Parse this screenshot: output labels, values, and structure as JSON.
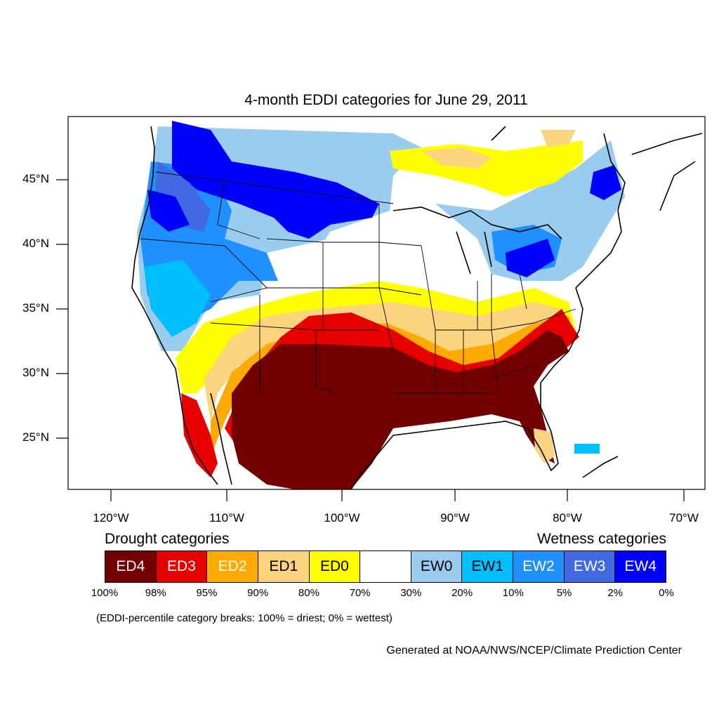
{
  "title": "4-month EDDI categories for June 29, 2011",
  "lat_labels": [
    "45°N",
    "40°N",
    "35°N",
    "30°N",
    "25°N"
  ],
  "lon_labels": [
    "120°W",
    "110°W",
    "100°W",
    "90°W",
    "80°W",
    "70°W"
  ],
  "legend": {
    "drought_heading": "Drought categories",
    "wetness_heading": "Wetness categories",
    "categories": [
      {
        "label": "ED4",
        "color": "#730000",
        "text_color": "#ffffff"
      },
      {
        "label": "ED3",
        "color": "#e60000",
        "text_color": "#ffffff"
      },
      {
        "label": "ED2",
        "color": "#ffaa00",
        "text_color": "#ffffff"
      },
      {
        "label": "ED1",
        "color": "#fcd37f",
        "text_color": "#000000"
      },
      {
        "label": "ED0",
        "color": "#ffff00",
        "text_color": "#000000"
      },
      {
        "label": "",
        "color": "#ffffff",
        "text_color": "#000000"
      },
      {
        "label": "EW0",
        "color": "#99ccee",
        "text_color": "#000000"
      },
      {
        "label": "EW1",
        "color": "#00bfff",
        "text_color": "#000000"
      },
      {
        "label": "EW2",
        "color": "#1e90ff",
        "text_color": "#ffffff"
      },
      {
        "label": "EW3",
        "color": "#4169e1",
        "text_color": "#ffffff"
      },
      {
        "label": "EW4",
        "color": "#0000ff",
        "text_color": "#ffffff"
      }
    ],
    "percentiles": [
      "100%",
      "98%",
      "95%",
      "90%",
      "80%",
      "70%",
      "30%",
      "20%",
      "10%",
      "5%",
      "2%",
      "0%"
    ]
  },
  "note": "(EDDI-percentile category breaks: 100% = driest; 0% = wettest)",
  "credit": "Generated at NOAA/NWS/NCEP/Climate Prediction Center"
}
